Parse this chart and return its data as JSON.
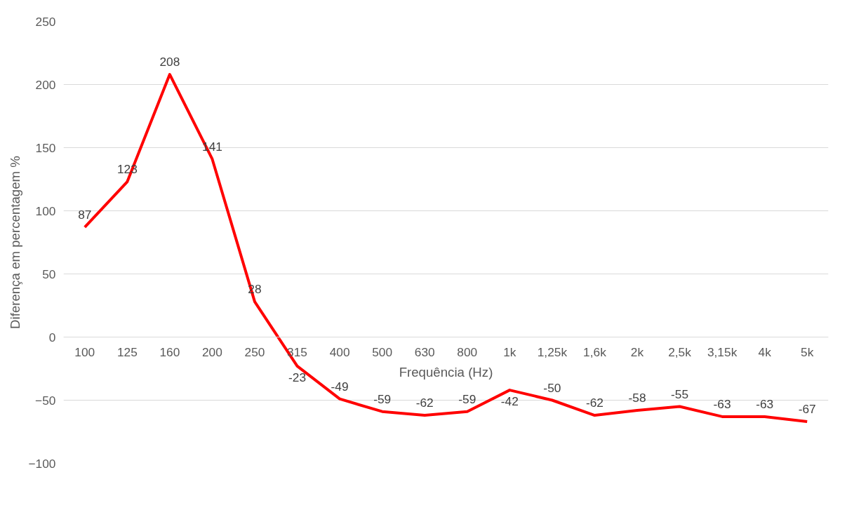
{
  "chart_data": {
    "type": "line",
    "xlabel": "Frequência (Hz)",
    "ylabel": "Diferença em percentagem %",
    "categories": [
      "100",
      "125",
      "160",
      "200",
      "250",
      "315",
      "400",
      "500",
      "630",
      "800",
      "1k",
      "1,25k",
      "1,6k",
      "2k",
      "2,5k",
      "3,15k",
      "4k",
      "5k"
    ],
    "series": [
      {
        "color": "#ff0000",
        "values": [
          87,
          123,
          208,
          141,
          28,
          -23,
          -49,
          -59,
          -62,
          -59,
          -42,
          -50,
          -62,
          -58,
          -55,
          -63,
          -63,
          -67
        ]
      }
    ],
    "ylim": [
      -100,
      250
    ],
    "yticks": [
      -100,
      -50,
      0,
      50,
      100,
      150,
      200,
      250
    ],
    "grid": "y",
    "data_labels": true,
    "marker": "none",
    "line_style": "solid"
  }
}
